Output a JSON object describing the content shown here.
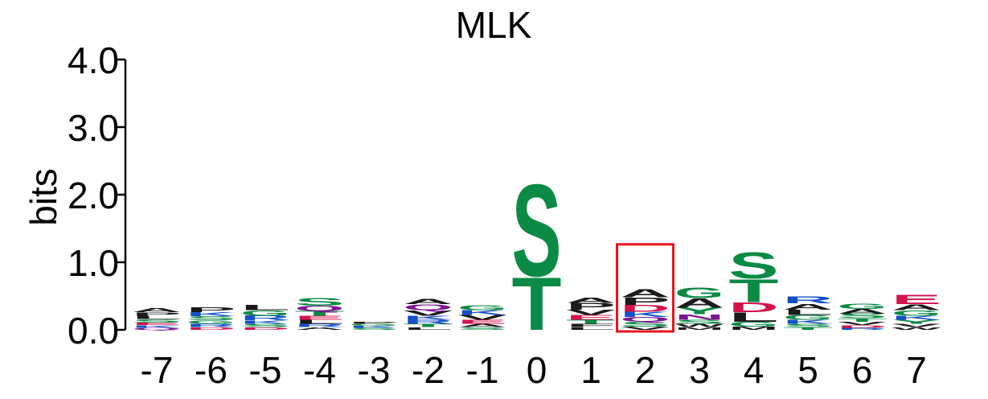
{
  "chart_data": {
    "type": "sequence-logo",
    "title": "MLK",
    "ylabel": "bits",
    "ylim": [
      0,
      4.0
    ],
    "yticks": [
      "0.0",
      "1.0",
      "2.0",
      "3.0",
      "4.0"
    ],
    "positions": [
      "-7",
      "-6",
      "-5",
      "-4",
      "-3",
      "-2",
      "-1",
      "0",
      "1",
      "2",
      "3",
      "4",
      "5",
      "6",
      "7"
    ],
    "highlight_position": "2",
    "highlight_color": "#e8141c",
    "colors": {
      "hydrophobic": "#1a1a1a",
      "polar": "#0a8a44",
      "basic": "#1450c8",
      "acidic": "#d4124a",
      "amide": "#7a1590"
    },
    "columns": [
      {
        "pos": "-7",
        "stack": [
          [
            "Q",
            0.03,
            "amide"
          ],
          [
            "K",
            0.04,
            "basic"
          ],
          [
            "E",
            0.04,
            "acidic"
          ],
          [
            "S",
            0.05,
            "polar"
          ],
          [
            "L",
            0.05,
            "hydrophobic"
          ],
          [
            "P",
            0.05,
            "hydrophobic"
          ],
          [
            "A",
            0.06,
            "hydrophobic"
          ]
        ]
      },
      {
        "pos": "-6",
        "stack": [
          [
            "D",
            0.04,
            "acidic"
          ],
          [
            "R",
            0.05,
            "basic"
          ],
          [
            "G",
            0.05,
            "polar"
          ],
          [
            "S",
            0.06,
            "polar"
          ],
          [
            "K",
            0.06,
            "basic"
          ],
          [
            "P",
            0.07,
            "hydrophobic"
          ]
        ]
      },
      {
        "pos": "-5",
        "stack": [
          [
            "D",
            0.04,
            "acidic"
          ],
          [
            "S",
            0.05,
            "polar"
          ],
          [
            "K",
            0.05,
            "basic"
          ],
          [
            "R",
            0.07,
            "basic"
          ],
          [
            "G",
            0.08,
            "polar"
          ],
          [
            "L",
            0.08,
            "hydrophobic"
          ]
        ]
      },
      {
        "pos": "-4",
        "stack": [
          [
            "A",
            0.04,
            "hydrophobic"
          ],
          [
            "R",
            0.05,
            "basic"
          ],
          [
            "L",
            0.06,
            "hydrophobic"
          ],
          [
            "E",
            0.06,
            "acidic"
          ],
          [
            "T",
            0.07,
            "polar"
          ],
          [
            "Q",
            0.08,
            "amide"
          ],
          [
            "S",
            0.12,
            "polar"
          ]
        ]
      },
      {
        "pos": "-3",
        "stack": [
          [
            "S",
            0.03,
            "polar"
          ],
          [
            "K",
            0.03,
            "basic"
          ],
          [
            "G",
            0.03,
            "polar"
          ],
          [
            "P",
            0.03,
            "hydrophobic"
          ]
        ]
      },
      {
        "pos": "-2",
        "stack": [
          [
            "L",
            0.04,
            "hydrophobic"
          ],
          [
            "T",
            0.05,
            "polar"
          ],
          [
            "R",
            0.06,
            "basic"
          ],
          [
            "K",
            0.06,
            "basic"
          ],
          [
            "V",
            0.08,
            "hydrophobic"
          ],
          [
            "Q",
            0.09,
            "amide"
          ],
          [
            "A",
            0.08,
            "hydrophobic"
          ]
        ]
      },
      {
        "pos": "-1",
        "stack": [
          [
            "S",
            0.04,
            "polar"
          ],
          [
            "A",
            0.05,
            "hydrophobic"
          ],
          [
            "E",
            0.06,
            "acidic"
          ],
          [
            "V",
            0.07,
            "hydrophobic"
          ],
          [
            "K",
            0.07,
            "basic"
          ],
          [
            "G",
            0.07,
            "polar"
          ]
        ]
      },
      {
        "pos": "0",
        "stack": [
          [
            "T",
            0.8,
            "polar"
          ],
          [
            "S",
            1.4,
            "polar"
          ]
        ]
      },
      {
        "pos": "1",
        "stack": [
          [
            "L",
            0.04,
            "hydrophobic"
          ],
          [
            "F",
            0.05,
            "hydrophobic"
          ],
          [
            "T",
            0.06,
            "polar"
          ],
          [
            "E",
            0.07,
            "acidic"
          ],
          [
            "V",
            0.08,
            "hydrophobic"
          ],
          [
            "P",
            0.1,
            "hydrophobic"
          ],
          [
            "A",
            0.08,
            "hydrophobic"
          ]
        ]
      },
      {
        "pos": "2",
        "stack": [
          [
            "V",
            0.05,
            "hydrophobic"
          ],
          [
            "S",
            0.07,
            "polar"
          ],
          [
            "Q",
            0.07,
            "amide"
          ],
          [
            "K",
            0.08,
            "basic"
          ],
          [
            "D",
            0.1,
            "acidic"
          ],
          [
            "P",
            0.11,
            "hydrophobic"
          ],
          [
            "A",
            0.13,
            "hydrophobic"
          ]
        ]
      },
      {
        "pos": "3",
        "stack": [
          [
            "M",
            0.04,
            "hydrophobic"
          ],
          [
            "W",
            0.05,
            "hydrophobic"
          ],
          [
            "S",
            0.06,
            "polar"
          ],
          [
            "N",
            0.08,
            "amide"
          ],
          [
            "Y",
            0.1,
            "polar"
          ],
          [
            "A",
            0.14,
            "hydrophobic"
          ],
          [
            "G",
            0.16,
            "polar"
          ]
        ]
      },
      {
        "pos": "4",
        "stack": [
          [
            "M",
            0.05,
            "hydrophobic"
          ],
          [
            "G",
            0.07,
            "polar"
          ],
          [
            "L",
            0.14,
            "hydrophobic"
          ],
          [
            "D",
            0.15,
            "acidic"
          ],
          [
            "T",
            0.35,
            "polar"
          ],
          [
            "S",
            0.4,
            "polar"
          ]
        ]
      },
      {
        "pos": "5",
        "stack": [
          [
            "T",
            0.04,
            "polar"
          ],
          [
            "S",
            0.05,
            "polar"
          ],
          [
            "K",
            0.06,
            "basic"
          ],
          [
            "G",
            0.07,
            "polar"
          ],
          [
            "L",
            0.08,
            "hydrophobic"
          ],
          [
            "A",
            0.09,
            "hydrophobic"
          ],
          [
            "R",
            0.1,
            "basic"
          ]
        ]
      },
      {
        "pos": "6",
        "stack": [
          [
            "R",
            0.03,
            "basic"
          ],
          [
            "D",
            0.04,
            "acidic"
          ],
          [
            "V",
            0.05,
            "hydrophobic"
          ],
          [
            "T",
            0.05,
            "polar"
          ],
          [
            "S",
            0.07,
            "polar"
          ],
          [
            "A",
            0.07,
            "hydrophobic"
          ],
          [
            "G",
            0.08,
            "polar"
          ]
        ]
      },
      {
        "pos": "7",
        "stack": [
          [
            "W",
            0.04,
            "hydrophobic"
          ],
          [
            "V",
            0.05,
            "hydrophobic"
          ],
          [
            "Y",
            0.06,
            "polar"
          ],
          [
            "K",
            0.06,
            "basic"
          ],
          [
            "G",
            0.08,
            "polar"
          ],
          [
            "A",
            0.09,
            "hydrophobic"
          ],
          [
            "E",
            0.14,
            "acidic"
          ]
        ]
      }
    ]
  }
}
